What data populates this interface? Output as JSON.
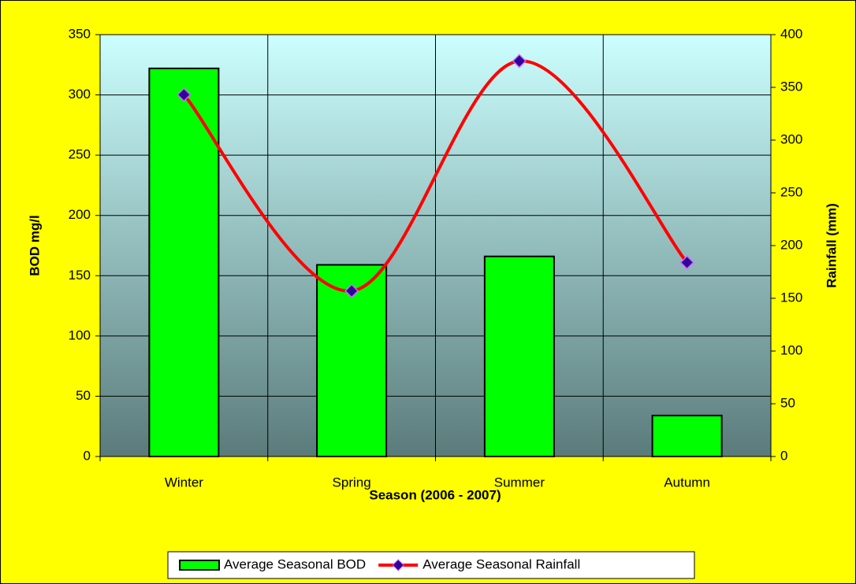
{
  "chart_data": {
    "type": "bar",
    "xlabel": "Season (2006 - 2007)",
    "ylabel": "BOD mg/l",
    "y2label": "Rainfall (mm)",
    "categories": [
      "Winter",
      "Spring",
      "Summer",
      "Autumn"
    ],
    "series": [
      {
        "name": "Average Seasonal BOD",
        "type": "bar",
        "color": "#00ff00",
        "values": [
          322,
          159,
          166,
          34
        ]
      },
      {
        "name": "Average Seasonal Rainfall",
        "type": "line",
        "axis": "y2",
        "color": "#ff0000",
        "marker_color": "#330099",
        "values": [
          343,
          157,
          375,
          184
        ]
      }
    ],
    "ylim": [
      0,
      350
    ],
    "yticks": [
      0,
      50,
      100,
      150,
      200,
      250,
      300,
      350
    ],
    "y2lim": [
      0,
      400
    ],
    "y2ticks": [
      0,
      50,
      100,
      150,
      200,
      250,
      300,
      350,
      400
    ],
    "grid": true,
    "legend": "bottom"
  }
}
